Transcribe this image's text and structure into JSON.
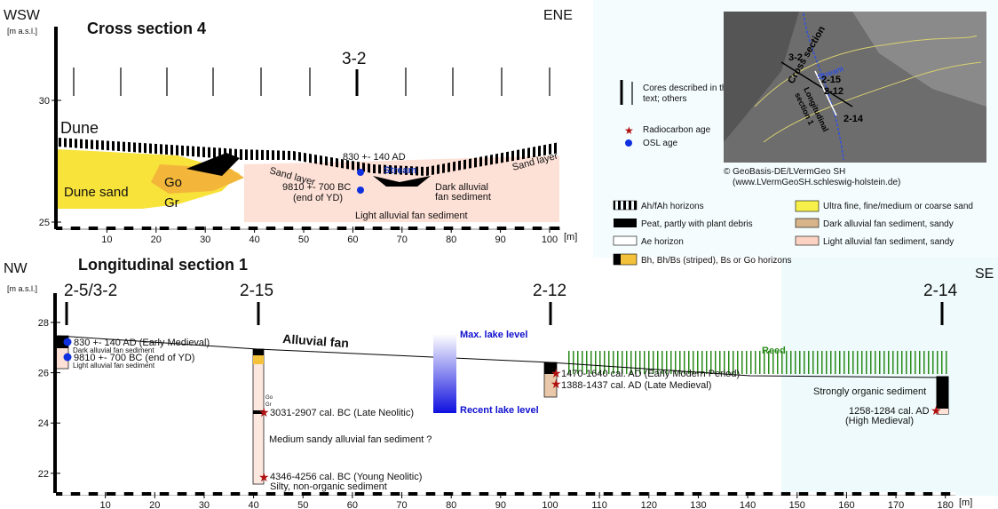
{
  "cross_section": {
    "title": "Cross section 4",
    "west": "WSW",
    "east": "ENE",
    "y_unit": "[m a.s.l.]",
    "x_unit": "[m]",
    "y_ticks": [
      30,
      25
    ],
    "x_ticks": [
      10,
      20,
      30,
      40,
      50,
      60,
      70,
      80,
      90,
      100
    ],
    "core": "3-2",
    "labels": {
      "dune": "Dune",
      "dune_sand": "Dune sand",
      "go": "Go",
      "gr": "Gr",
      "sand_layer_1": "Sand layer",
      "sand_layer_2": "Sand layer",
      "stream": "Stream",
      "osl_1": "830 +- 140 AD",
      "osl_2": "9810 +- 700 BC",
      "osl_2_note": "(end of YD)",
      "dark_fan_1": "Dark alluvial",
      "dark_fan_2": "fan sediment",
      "light_fan": "Light alluvial fan sediment"
    }
  },
  "longitudinal_section": {
    "title": "Longitudinal section 1",
    "west": "NW",
    "east": "SE",
    "y_unit": "[m a.s.l.]",
    "x_unit": "[m]",
    "y_ticks": [
      28,
      26,
      24,
      22
    ],
    "x_ticks": [
      10,
      20,
      30,
      40,
      50,
      60,
      70,
      80,
      90,
      100,
      110,
      120,
      130,
      140,
      150,
      160,
      170,
      180
    ],
    "cores": [
      "2-5/3-2",
      "2-15",
      "2-12",
      "2-14"
    ],
    "labels": {
      "alluvial_fan": "Alluvial fan",
      "max_lake": "Max. lake level",
      "recent_lake": "Recent lake level",
      "reed": "Reed",
      "osl_1": "830 +- 140 AD (Early Medieval)",
      "dark_fan": "Dark alluvial fan sediment",
      "osl_2": "9810 +- 700 BC (end of YD)",
      "light_fan": "Light alluvial fan sediment",
      "go": "Go",
      "gr": "Gr",
      "c14_1": "3031-2907 cal. BC (Late Neolitic)",
      "medium_sandy": "Medium sandy alluvial fan sediment ?",
      "c14_2": "4346-4256 cal. BC (Young Neolitic)",
      "silty": "Silty, non-organic sediment",
      "c14_3": "1470-1640 cal. AD (Early Modern Period)",
      "c14_4": "1388-1437 cal. AD (Late Medieval)",
      "organic": "Strongly organic sediment",
      "c14_5": "1258-1284 cal. AD",
      "c14_5_note": "(High Medieval)"
    }
  },
  "legend": {
    "cores_1": "Cores described in the",
    "cores_2": "text; others",
    "radiocarbon": "Radiocarbon age",
    "osl": "OSL age",
    "items": [
      "Ah/fAh horizons",
      "Peat, partly with plant debris",
      "Ae horizon",
      "Bh, Bh/Bs (striped), Bs or Go horizons",
      "Ultra fine, fine/medium or coarse sand",
      "Dark alluvial fan sediment, sandy",
      "Light alluvial fan sediment, sandy"
    ]
  },
  "map": {
    "labels": [
      "3-2",
      "Cross section",
      "Stream",
      "Longitudinal",
      "section 1",
      "2-15",
      "2-12",
      "2-14"
    ],
    "credit_1": "© GeoBasis-DE/LVermGeo SH",
    "credit_2": "(www.LVermGeoSH.schleswig-holstein.de)"
  }
}
